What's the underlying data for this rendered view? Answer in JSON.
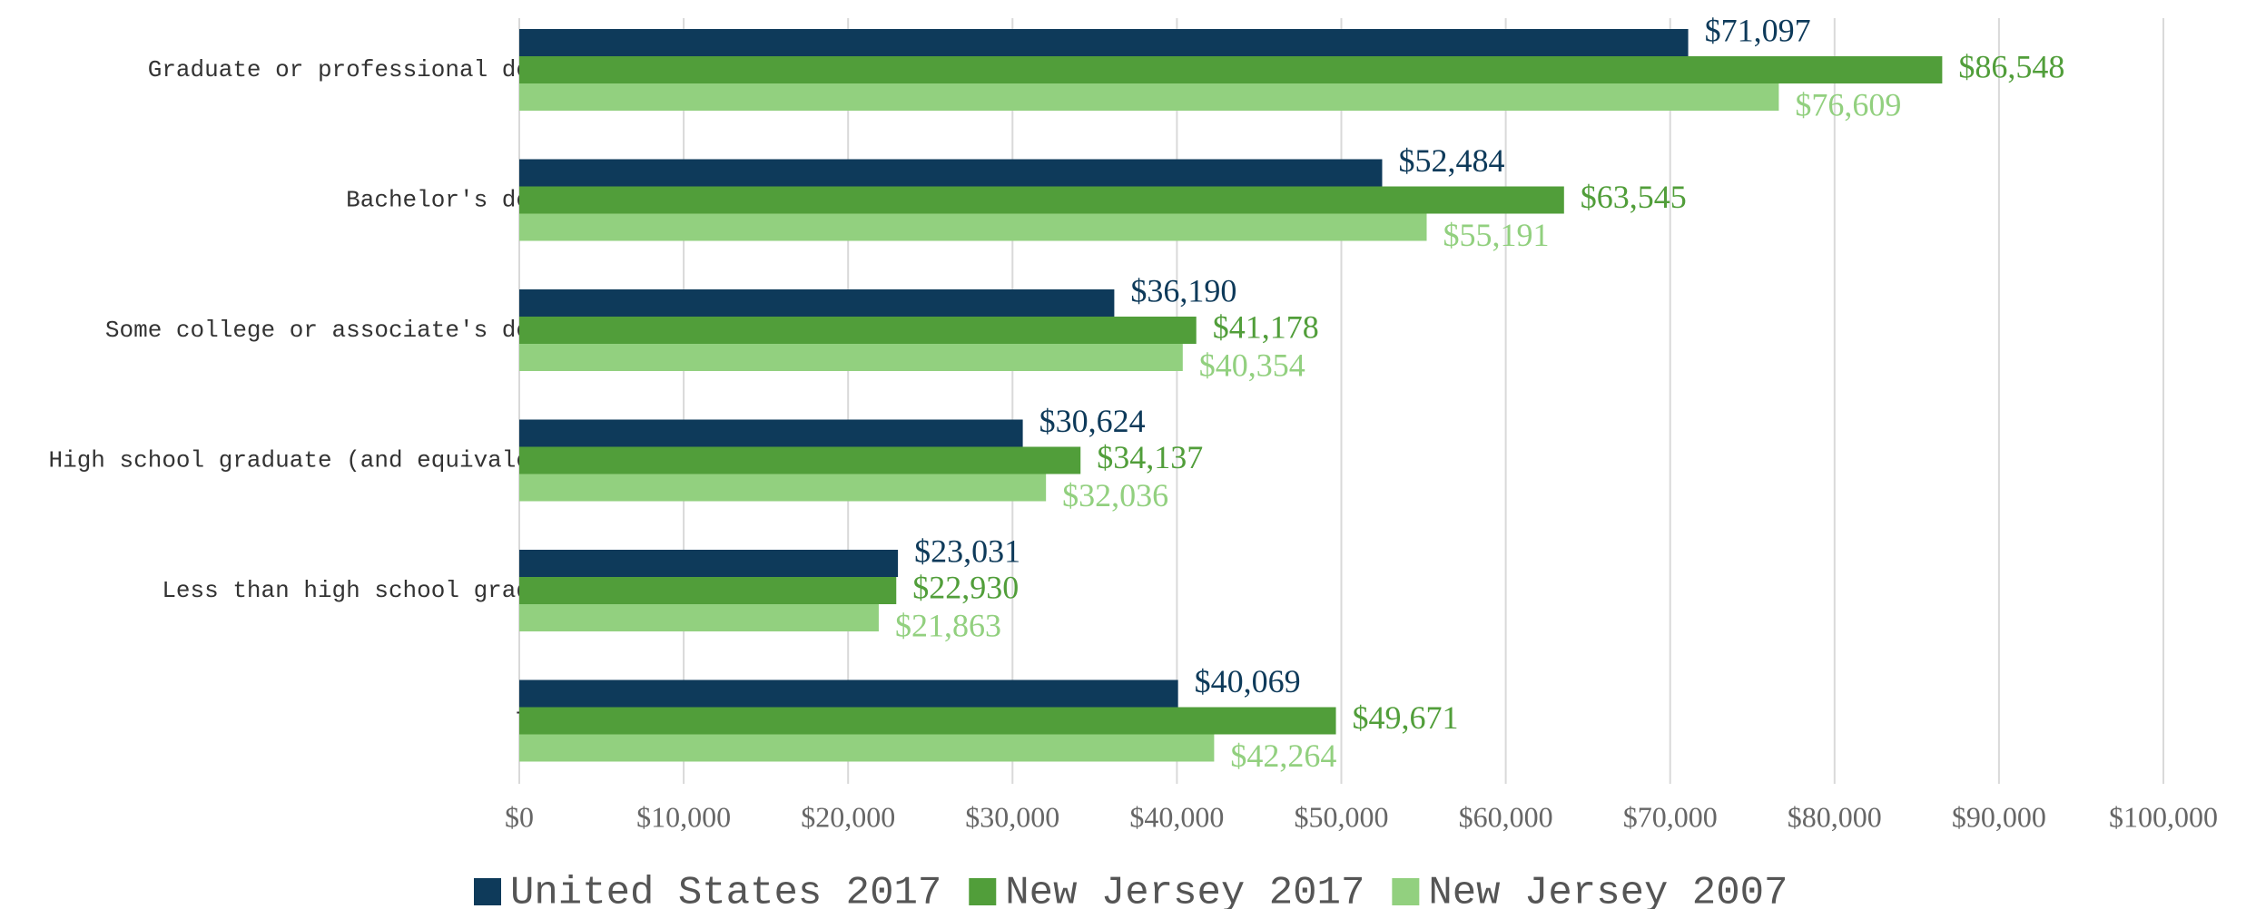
{
  "chart_data": {
    "type": "bar",
    "orientation": "horizontal",
    "categories": [
      "Graduate or professional degree:",
      "Bachelor's degree:",
      "Some college or associate's degree:",
      "High school graduate (and equivalency):",
      "Less than high school graduate:",
      "Total:"
    ],
    "series": [
      {
        "name": "United States 2017",
        "color": "#0e3a5a",
        "values": [
          71097,
          52484,
          36190,
          30624,
          23031,
          40069
        ],
        "value_labels": [
          "$71,097",
          "$52,484",
          "$36,190",
          "$30,624",
          "$23,031",
          "$40,069"
        ]
      },
      {
        "name": "New Jersey 2017",
        "color": "#519e3a",
        "values": [
          86548,
          63545,
          41178,
          34137,
          22930,
          49671
        ],
        "value_labels": [
          "$86,548",
          "$63,545",
          "$41,178",
          "$34,137",
          "$22,930",
          "$49,671"
        ]
      },
      {
        "name": "New Jersey 2007",
        "color": "#92d07f",
        "values": [
          76609,
          55191,
          40354,
          32036,
          21863,
          42264
        ],
        "value_labels": [
          "$76,609",
          "$55,191",
          "$40,354",
          "$32,036",
          "$21,863",
          "$42,264"
        ]
      }
    ],
    "xlim": [
      0,
      100000
    ],
    "xticks": [
      {
        "value": 0,
        "label": "$0"
      },
      {
        "value": 10000,
        "label": "$10,000"
      },
      {
        "value": 20000,
        "label": "$20,000"
      },
      {
        "value": 30000,
        "label": "$30,000"
      },
      {
        "value": 40000,
        "label": "$40,000"
      },
      {
        "value": 50000,
        "label": "$50,000"
      },
      {
        "value": 60000,
        "label": "$60,000"
      },
      {
        "value": 70000,
        "label": "$70,000"
      },
      {
        "value": 80000,
        "label": "$80,000"
      },
      {
        "value": 90000,
        "label": "$90,000"
      },
      {
        "value": 100000,
        "label": "$100,000"
      }
    ],
    "grid": true,
    "legend": "bottom"
  }
}
